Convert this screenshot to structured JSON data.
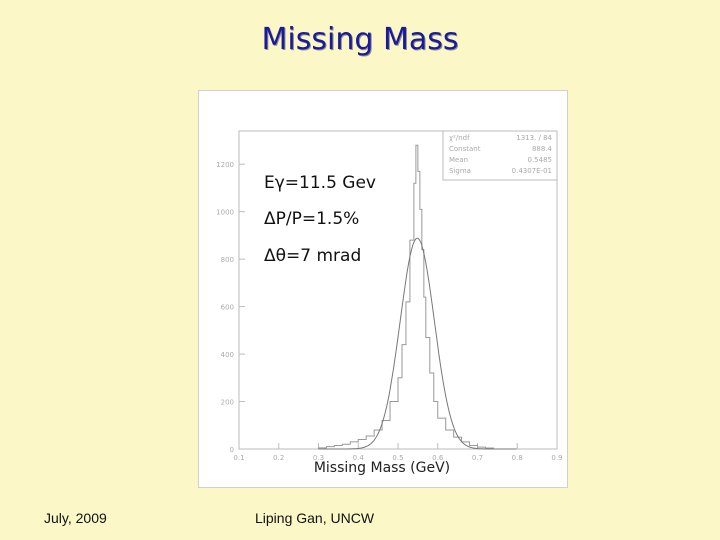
{
  "slide": {
    "title": "Missing Mass",
    "footer_date": "July, 2009",
    "footer_author": "Liping Gan, UNCW"
  },
  "annotations": {
    "beam_energy": "Eγ=11.5 Gev",
    "momentum_resolution": "ΔP/P=1.5%",
    "angle_resolution": "Δθ=7 mrad"
  },
  "stats_box": {
    "rows": [
      {
        "label": "χ²/ndf",
        "value": "1313. / 84"
      },
      {
        "label": "Constant",
        "value": "888.4"
      },
      {
        "label": "Mean",
        "value": "0.5485"
      },
      {
        "label": "Sigma",
        "value": "0.4307E-01"
      }
    ]
  },
  "chart_data": {
    "type": "bar",
    "title": "",
    "xlabel": "Missing Mass (GeV)",
    "ylabel": "",
    "xlim": [
      0.1,
      0.9
    ],
    "ylim": [
      0,
      1340
    ],
    "x_ticks": [
      0.1,
      0.2,
      0.3,
      0.4,
      0.5,
      0.6,
      0.7,
      0.8,
      0.9
    ],
    "x_tick_labels": [
      "0.1",
      "0.2",
      "0.3",
      "0.4",
      "0.5",
      "0.6",
      "0.7",
      "0.8",
      "0.9"
    ],
    "y_ticks": [
      0,
      200,
      400,
      600,
      800,
      1000,
      1200
    ],
    "y_tick_labels": [
      "0",
      "200",
      "400",
      "600",
      "800",
      "1000",
      "1200"
    ],
    "grid": false,
    "series": [
      {
        "kind": "histogram",
        "bin_edges": [
          0.3,
          0.32,
          0.34,
          0.36,
          0.38,
          0.4,
          0.42,
          0.44,
          0.46,
          0.48,
          0.5,
          0.51,
          0.52,
          0.53,
          0.54,
          0.545,
          0.55,
          0.555,
          0.56,
          0.565,
          0.57,
          0.58,
          0.59,
          0.6,
          0.62,
          0.64,
          0.66,
          0.68,
          0.7,
          0.72,
          0.74
        ],
        "values": [
          5,
          10,
          15,
          20,
          30,
          40,
          55,
          80,
          120,
          200,
          300,
          440,
          620,
          880,
          1120,
          1280,
          1170,
          1010,
          840,
          640,
          470,
          320,
          200,
          130,
          80,
          50,
          30,
          15,
          8,
          4
        ]
      },
      {
        "kind": "gaussian_fit",
        "constant": 888.4,
        "mean": 0.5485,
        "sigma": 0.04307
      }
    ]
  }
}
